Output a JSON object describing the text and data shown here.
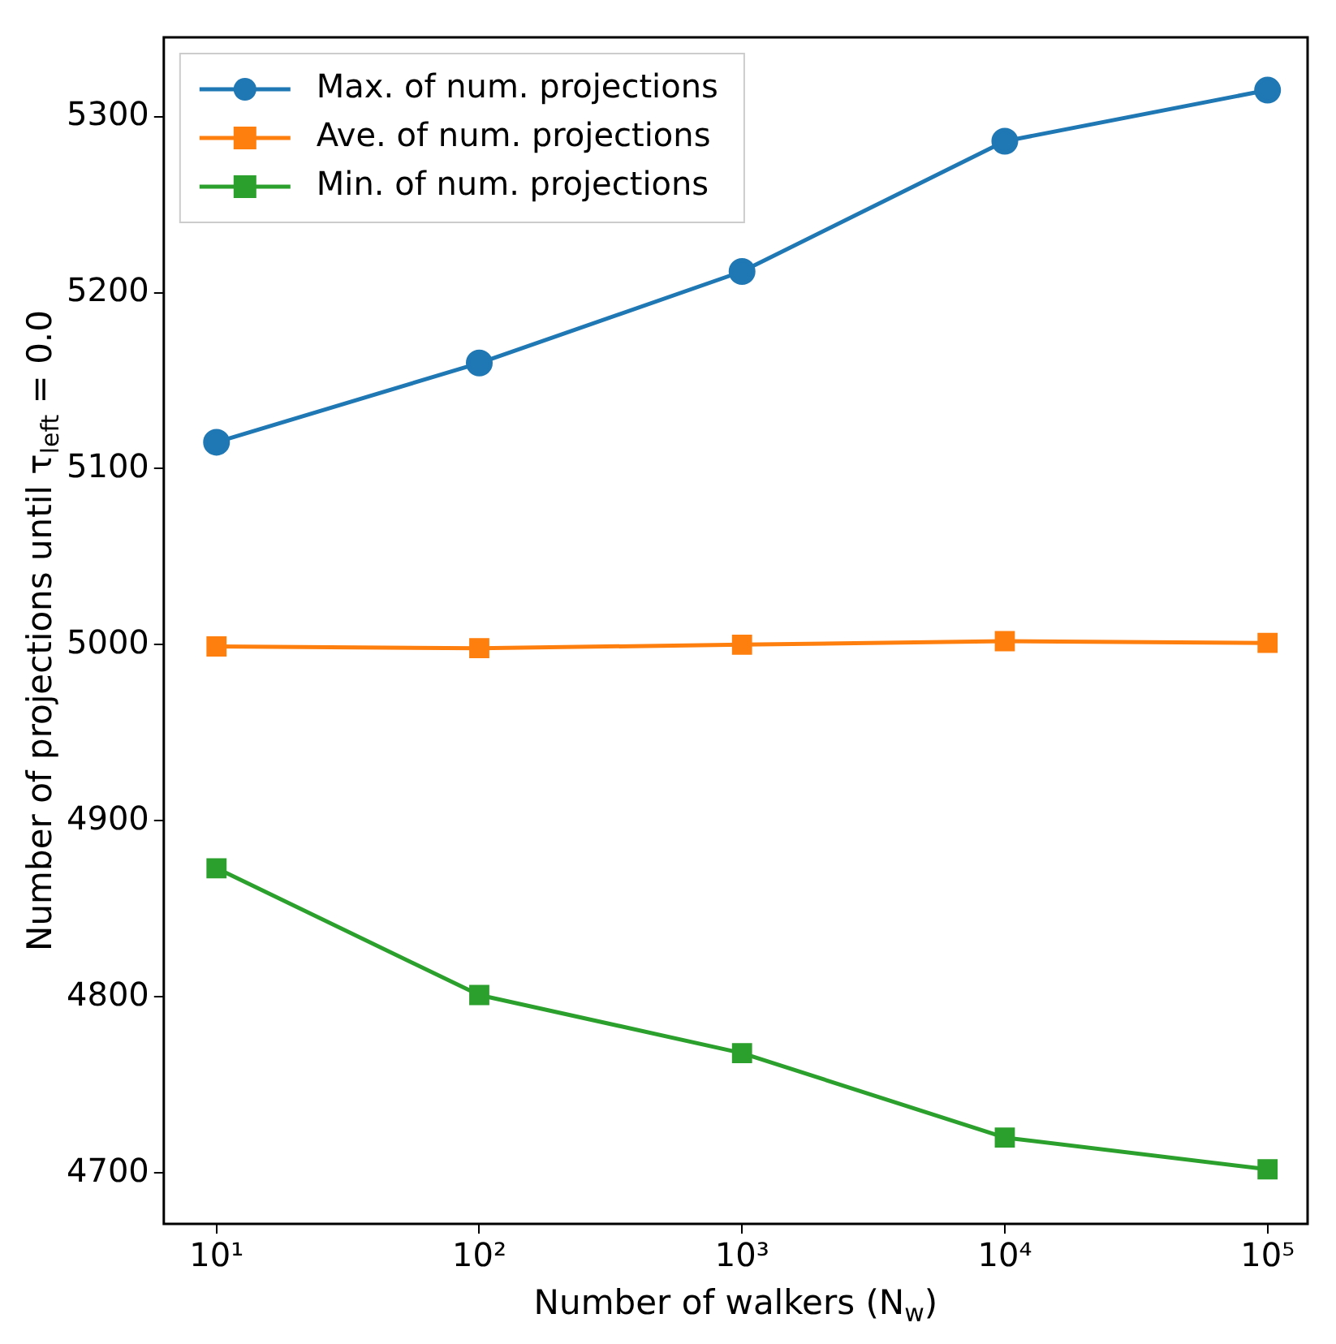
{
  "chart_data": {
    "type": "line",
    "xlabel": "Number of walkers (N$_{w}$)",
    "ylabel": "Number of projections until τ$_{left}$ = 0.0",
    "x": [
      10,
      100,
      1000,
      10000,
      100000
    ],
    "log": "x",
    "xlim": [
      6.3,
      142000
    ],
    "xticks": [
      {
        "value": 10,
        "label": "10¹"
      },
      {
        "value": 100,
        "label": "10²"
      },
      {
        "value": 1000,
        "label": "10³"
      },
      {
        "value": 10000,
        "label": "10⁴"
      },
      {
        "value": 100000,
        "label": "10⁵"
      }
    ],
    "ylim": [
      4671,
      5345
    ],
    "yticks": [
      4700,
      4800,
      4900,
      5000,
      5100,
      5200,
      5300
    ],
    "grid": false,
    "legend": "top left",
    "series": [
      {
        "name": "Max. of num. projections",
        "color": "#1f77b4",
        "marker": "circle",
        "values": [
          5115,
          5160,
          5212,
          5286,
          5315
        ]
      },
      {
        "name": "Ave. of num. projections",
        "color": "#ff7f0e",
        "marker": "square",
        "values": [
          4999,
          4998,
          5000,
          5002,
          5001
        ]
      },
      {
        "name": "Min. of num. projections",
        "color": "#2ca02c",
        "marker": "square",
        "values": [
          4873,
          4801,
          4768,
          4720,
          4702
        ]
      }
    ]
  }
}
